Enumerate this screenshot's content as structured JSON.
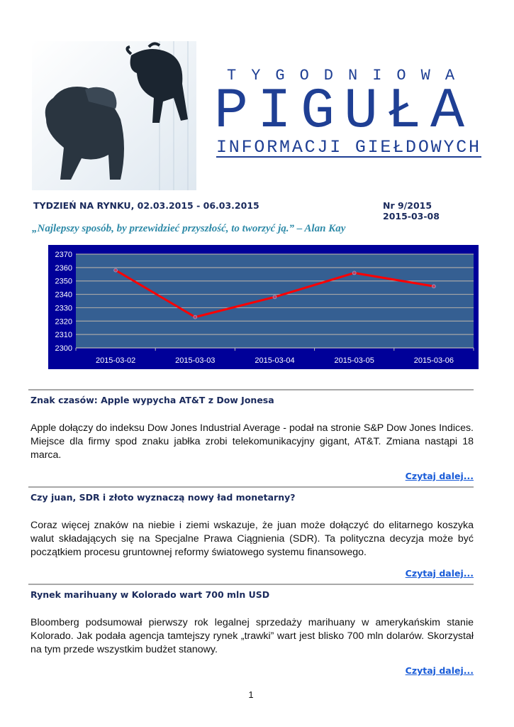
{
  "masthead": {
    "line1": "TYGODNIOWA",
    "line2": "PIGUŁA",
    "line3": "INFORMACJI GIEŁDOWYCH"
  },
  "header": {
    "week": "TYDZIEŃ NA RYNKU, 02.03.2015 - 06.03.2015",
    "issue": "Nr 9/2015",
    "date": "2015-03-08",
    "quote": "„Najlepszy sposób, by przewidzieć przyszłość, to tworzyć ją.” – Alan Kay"
  },
  "chart_data": {
    "type": "line",
    "categories": [
      "2015-03-02",
      "2015-03-03",
      "2015-03-04",
      "2015-03-05",
      "2015-03-06"
    ],
    "values": [
      2358,
      2323,
      2338,
      2356,
      2346
    ],
    "ylim": [
      2300,
      2370
    ],
    "yticks": [
      "2300",
      "2310",
      "2320",
      "2330",
      "2340",
      "2350",
      "2360",
      "2370"
    ],
    "grid": true,
    "colors": {
      "frame": "#000099",
      "plot": "#355f92",
      "line": "#ff0000",
      "grid": "#a6a6a6"
    }
  },
  "articles": [
    {
      "title": "Znak czasów: Apple wypycha AT&T z Dow Jonesa",
      "body": "Apple dołączy do indeksu Dow Jones Industrial Average - podał na stronie S&P Dow Jones Indices. Miejsce dla firmy spod znaku jabłka zrobi telekomunikacyjny gigant, AT&T. Zmiana nastąpi 18 marca.",
      "more": "Czytaj dalej..."
    },
    {
      "title": "Czy juan, SDR i złoto wyznaczą nowy ład monetarny?",
      "body": "Coraz więcej znaków na niebie i ziemi wskazuje, że juan może dołączyć do elitarnego koszyka walut składających się na Specjalne Prawa Ciągnienia (SDR). Ta polityczna decyzja może być początkiem procesu gruntownej reformy światowego systemu finansowego.",
      "more": "Czytaj dalej..."
    },
    {
      "title": "Rynek marihuany w Kolorado wart 700 mln USD",
      "body": "Bloomberg podsumował pierwszy rok legalnej sprzedaży marihuany w amerykańskim stanie Kolorado. Jak podała agencja tamtejszy rynek „trawki” wart jest blisko 700 mln dolarów. Skorzystał na tym przede wszystkim budżet stanowy.",
      "more": "Czytaj dalej..."
    }
  ],
  "page_number": "1"
}
